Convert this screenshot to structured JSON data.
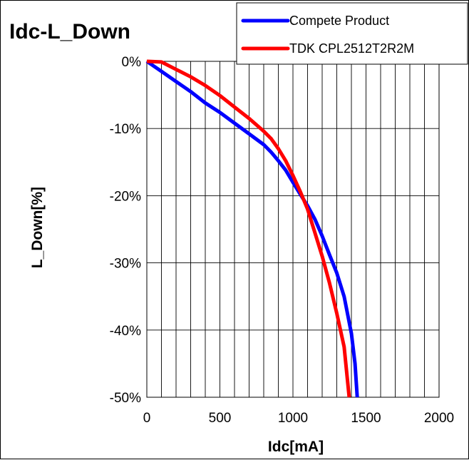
{
  "chart_data": {
    "type": "line",
    "title": "Idc-L_Down",
    "xlabel": "Idc[mA]",
    "ylabel": "L_Down[%]",
    "xlim": [
      0,
      2000
    ],
    "ylim": [
      -50,
      0
    ],
    "x_ticks": [
      0,
      500,
      1000,
      1500,
      2000
    ],
    "y_ticks": [
      0,
      -10,
      -20,
      -30,
      -40,
      -50
    ],
    "x_tick_labels": [
      "0",
      "500",
      "1000",
      "1500",
      "2000"
    ],
    "y_tick_labels": [
      "0%",
      "-10%",
      "-20%",
      "-30%",
      "-40%",
      "-50%"
    ],
    "x_minor_step": 100,
    "grid": true,
    "legend_position": "top-right",
    "series": [
      {
        "name": "Compete Product",
        "color": "#0000ff",
        "points": [
          [
            0,
            0
          ],
          [
            100,
            -1.5
          ],
          [
            200,
            -3
          ],
          [
            300,
            -4.5
          ],
          [
            400,
            -6.2
          ],
          [
            500,
            -7.6
          ],
          [
            600,
            -9.2
          ],
          [
            700,
            -10.8
          ],
          [
            800,
            -12.4
          ],
          [
            850,
            -13.5
          ],
          [
            900,
            -14.8
          ],
          [
            950,
            -16.2
          ],
          [
            1000,
            -18
          ],
          [
            1050,
            -19.8
          ],
          [
            1100,
            -21.5
          ],
          [
            1150,
            -23.5
          ],
          [
            1200,
            -26
          ],
          [
            1250,
            -28.8
          ],
          [
            1300,
            -31.5
          ],
          [
            1350,
            -35
          ],
          [
            1400,
            -40.5
          ],
          [
            1425,
            -45
          ],
          [
            1440,
            -50
          ]
        ]
      },
      {
        "name": "TDK CPL2512T2R2M",
        "color": "#ff0000",
        "points": [
          [
            0,
            0
          ],
          [
            100,
            -0.1
          ],
          [
            200,
            -1.2
          ],
          [
            300,
            -2.3
          ],
          [
            400,
            -3.6
          ],
          [
            500,
            -5.1
          ],
          [
            600,
            -6.8
          ],
          [
            700,
            -8.5
          ],
          [
            800,
            -10.4
          ],
          [
            850,
            -11.5
          ],
          [
            900,
            -13
          ],
          [
            950,
            -14.8
          ],
          [
            1000,
            -17
          ],
          [
            1050,
            -19.4
          ],
          [
            1100,
            -22
          ],
          [
            1150,
            -25.5
          ],
          [
            1200,
            -29
          ],
          [
            1250,
            -33
          ],
          [
            1300,
            -37.5
          ],
          [
            1350,
            -42.5
          ],
          [
            1385,
            -50
          ]
        ]
      }
    ]
  }
}
